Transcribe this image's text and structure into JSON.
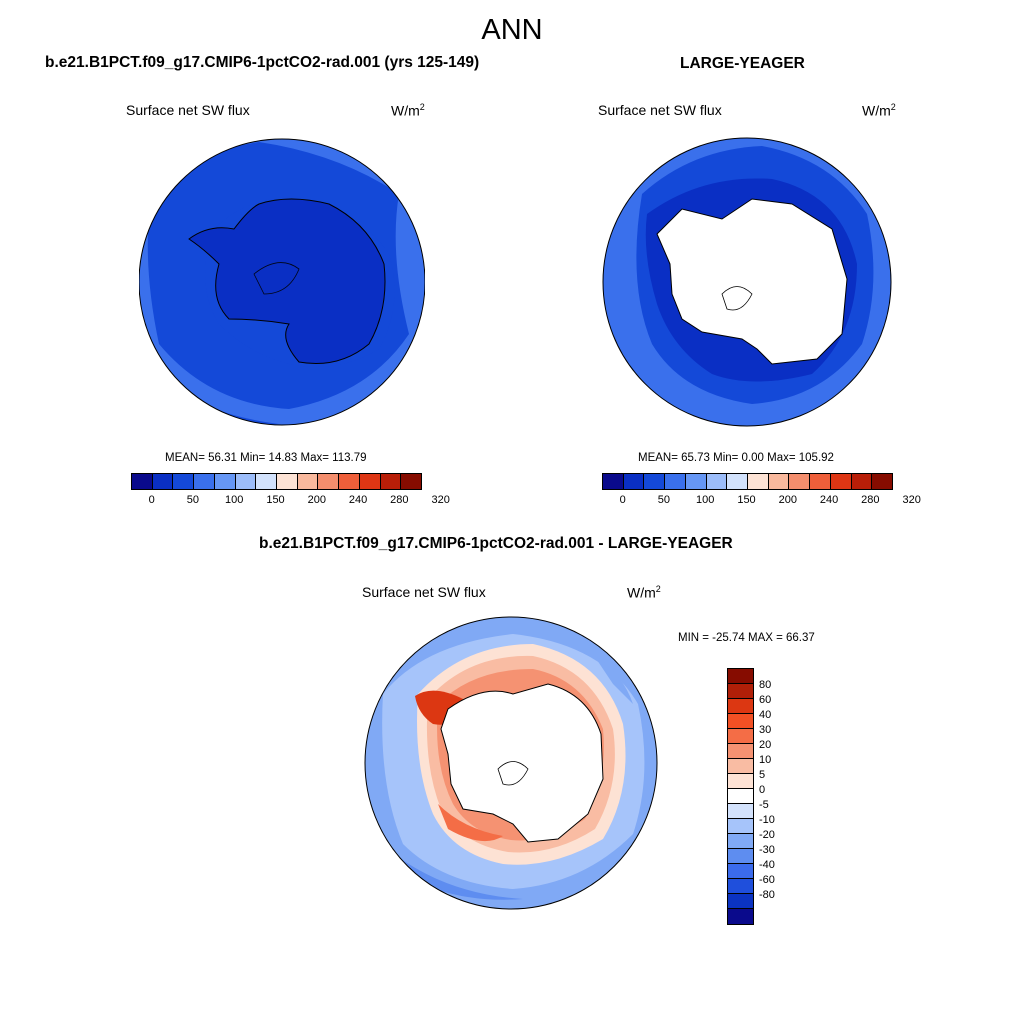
{
  "title": "ANN",
  "colors": {
    "abs_palette": [
      "#0a0a8c",
      "#0a2fc4",
      "#1449d8",
      "#3a70ec",
      "#6697f5",
      "#9cbdfa",
      "#d2e2fc",
      "#fde3d5",
      "#f9b99d",
      "#f48e6d",
      "#ef5f3a",
      "#de3614",
      "#b81e08",
      "#860c00"
    ],
    "diff_palette": [
      "#860c00",
      "#b01f08",
      "#dc3712",
      "#f25024",
      "#f46d46",
      "#f59272",
      "#f9bca3",
      "#fde2d4",
      "#ffffff",
      "#d3e2fc",
      "#a6c4fa",
      "#80a9f5",
      "#5e8df0",
      "#3b6bec",
      "#1f4fdc",
      "#0b33c2",
      "#0a0a8c"
    ]
  },
  "panels": {
    "model": {
      "title": "b.e21.B1PCT.f09_g17.CMIP6-1pctCO2-rad.001 (yrs 125-149)",
      "variable": "Surface net SW flux",
      "units": "W/m",
      "units_sup": "2",
      "stats": "MEAN=  56.31  Min=  14.83  Max= 113.79",
      "ticks": [
        "0",
        "50",
        "100",
        "150",
        "200",
        "240",
        "280",
        "320"
      ]
    },
    "obs": {
      "title": "LARGE-YEAGER",
      "variable": "Surface net SW flux",
      "units": "W/m",
      "units_sup": "2",
      "stats": "MEAN=  65.73  Min=   0.00  Max= 105.92",
      "ticks": [
        "0",
        "50",
        "100",
        "150",
        "200",
        "240",
        "280",
        "320"
      ]
    },
    "diff": {
      "title": "b.e21.B1PCT.f09_g17.CMIP6-1pctCO2-rad.001 - LARGE-YEAGER",
      "variable": "Surface net SW flux",
      "units": "W/m",
      "units_sup": "2",
      "stats": "MIN = -25.74 MAX =  66.37",
      "ticks": [
        "80",
        "60",
        "40",
        "30",
        "20",
        "10",
        "5",
        "0",
        "-5",
        "-10",
        "-20",
        "-30",
        "-40",
        "-60",
        "-80"
      ]
    }
  }
}
